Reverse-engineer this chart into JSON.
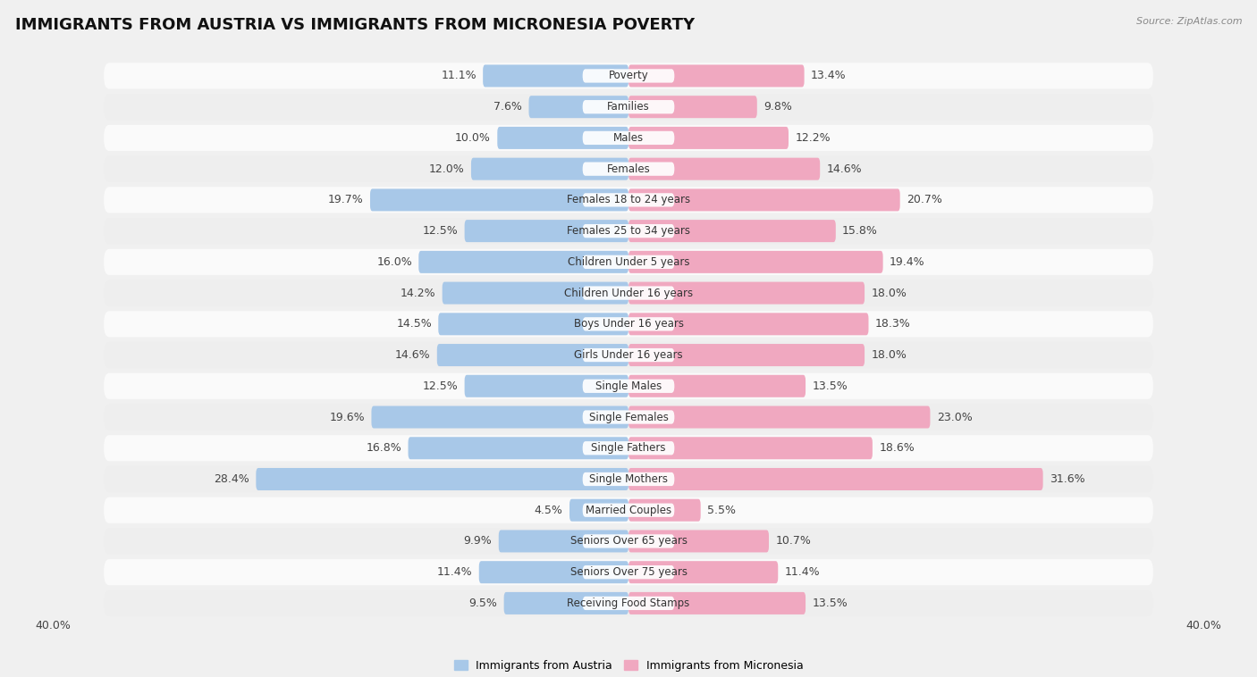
{
  "title": "IMMIGRANTS FROM AUSTRIA VS IMMIGRANTS FROM MICRONESIA POVERTY",
  "source": "Source: ZipAtlas.com",
  "categories": [
    "Poverty",
    "Families",
    "Males",
    "Females",
    "Females 18 to 24 years",
    "Females 25 to 34 years",
    "Children Under 5 years",
    "Children Under 16 years",
    "Boys Under 16 years",
    "Girls Under 16 years",
    "Single Males",
    "Single Females",
    "Single Fathers",
    "Single Mothers",
    "Married Couples",
    "Seniors Over 65 years",
    "Seniors Over 75 years",
    "Receiving Food Stamps"
  ],
  "austria_values": [
    11.1,
    7.6,
    10.0,
    12.0,
    19.7,
    12.5,
    16.0,
    14.2,
    14.5,
    14.6,
    12.5,
    19.6,
    16.8,
    28.4,
    4.5,
    9.9,
    11.4,
    9.5
  ],
  "micronesia_values": [
    13.4,
    9.8,
    12.2,
    14.6,
    20.7,
    15.8,
    19.4,
    18.0,
    18.3,
    18.0,
    13.5,
    23.0,
    18.6,
    31.6,
    5.5,
    10.7,
    11.4,
    13.5
  ],
  "austria_color": "#a8c8e8",
  "micronesia_color": "#f0a8c0",
  "background_color": "#f0f0f0",
  "row_color_light": "#fafafa",
  "row_color_dark": "#eeeeee",
  "xlim": 40.0,
  "legend_austria": "Immigrants from Austria",
  "legend_micronesia": "Immigrants from Micronesia",
  "bar_height": 0.72,
  "title_fontsize": 13,
  "value_fontsize": 9,
  "category_fontsize": 8.5,
  "axis_label_fontsize": 9
}
